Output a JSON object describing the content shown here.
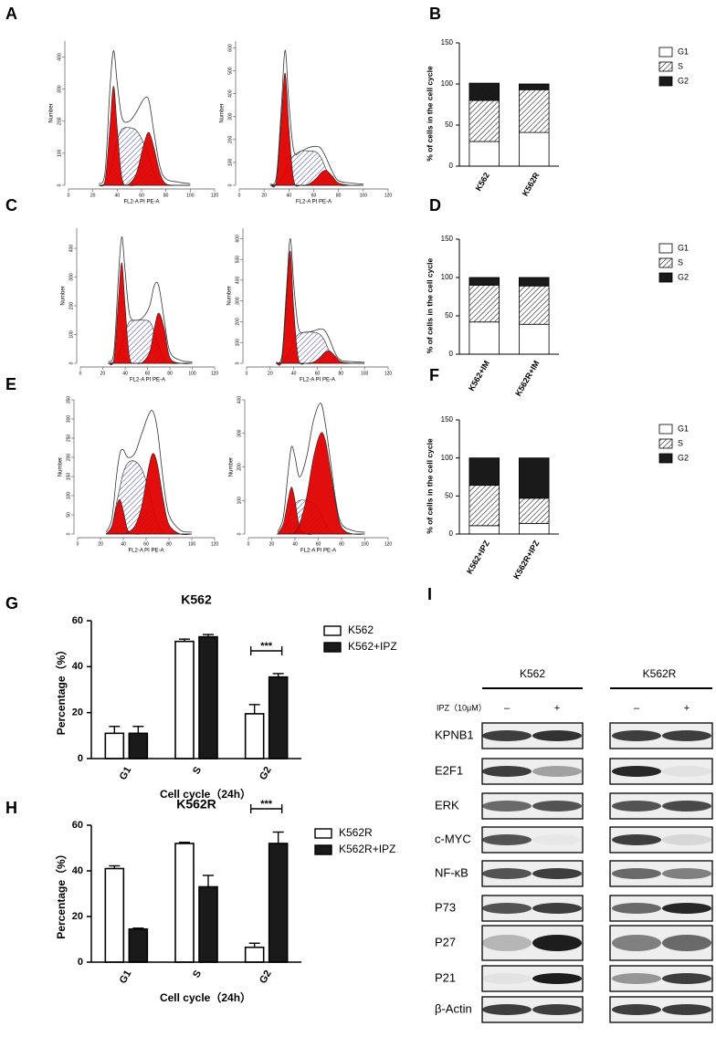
{
  "panel_labels": [
    "A",
    "B",
    "C",
    "D",
    "E",
    "F",
    "G",
    "H",
    "I"
  ],
  "chart_data": [
    {
      "type": "flow",
      "xlabel": "FL2-A PI PE-A",
      "ylabel": "Number",
      "xlim": [
        0,
        120
      ],
      "xticks": [
        0,
        20,
        40,
        60,
        80,
        100,
        120
      ],
      "ylim": [
        0,
        450
      ],
      "yticks": [
        0,
        100,
        200,
        300,
        400
      ],
      "x": [
        25,
        30,
        34,
        37,
        40,
        44,
        50,
        56,
        62,
        66,
        70,
        75,
        80,
        90,
        100
      ],
      "series": [
        {
          "kind": "area",
          "color": "#3a3a9c",
          "pattern": "hatch",
          "values": [
            0,
            5,
            40,
            90,
            140,
            175,
            180,
            170,
            130,
            90,
            40,
            10,
            0,
            0,
            0
          ]
        },
        {
          "kind": "area",
          "color": "#e00000",
          "values": [
            0,
            15,
            180,
            310,
            180,
            20,
            0,
            0,
            0,
            0,
            0,
            0,
            0,
            0,
            0
          ]
        },
        {
          "kind": "area",
          "color": "#e00000",
          "values": [
            0,
            0,
            0,
            0,
            0,
            0,
            5,
            40,
            130,
            165,
            120,
            40,
            5,
            0,
            0
          ]
        },
        {
          "kind": "line",
          "color": "#333333",
          "values": [
            5,
            40,
            300,
            420,
            320,
            210,
            200,
            230,
            270,
            265,
            170,
            60,
            20,
            10,
            5
          ]
        }
      ]
    },
    {
      "type": "flow",
      "xlabel": "FL2-A PI PE-A",
      "ylabel": "Number",
      "xlim": [
        0,
        120
      ],
      "xticks": [
        0,
        20,
        40,
        60,
        80,
        100,
        120
      ],
      "ylim": [
        0,
        630
      ],
      "yticks": [
        0,
        100,
        200,
        300,
        400,
        500,
        600
      ],
      "x": [
        25,
        30,
        34,
        37,
        40,
        44,
        50,
        56,
        62,
        66,
        70,
        75,
        80,
        90,
        100
      ],
      "series": [
        {
          "kind": "area",
          "color": "#3a3a9c",
          "pattern": "hatch",
          "values": [
            0,
            5,
            30,
            60,
            100,
            130,
            150,
            150,
            145,
            120,
            70,
            20,
            0,
            0,
            0
          ]
        },
        {
          "kind": "area",
          "color": "#e00000",
          "values": [
            0,
            20,
            300,
            490,
            250,
            20,
            0,
            0,
            0,
            0,
            0,
            0,
            0,
            0,
            0
          ]
        },
        {
          "kind": "area",
          "color": "#e00000",
          "values": [
            0,
            0,
            0,
            0,
            0,
            0,
            0,
            5,
            30,
            55,
            65,
            40,
            10,
            0,
            0
          ]
        },
        {
          "kind": "line",
          "color": "#333333",
          "values": [
            5,
            40,
            350,
            590,
            360,
            150,
            150,
            165,
            170,
            160,
            120,
            60,
            20,
            10,
            5
          ]
        }
      ]
    },
    {
      "type": "stacked",
      "ylabel": "% of cells in the cell cycle",
      "ylim": [
        0,
        150
      ],
      "yticks": [
        0,
        50,
        100,
        150
      ],
      "categories": [
        "K562",
        "K562R"
      ],
      "series": [
        {
          "name": "G1",
          "color": "#ffffff",
          "values": [
            30,
            41
          ]
        },
        {
          "name": "S",
          "color": "#ffffff",
          "pattern": "hatch",
          "values": [
            50,
            52
          ]
        },
        {
          "name": "G2",
          "color": "#1a1a1a",
          "values": [
            21,
            7
          ]
        }
      ]
    },
    {
      "type": "flow",
      "xlabel": "FL2-A PI PE-A",
      "ylabel": "Number",
      "xlim": [
        0,
        120
      ],
      "xticks": [
        0,
        20,
        40,
        60,
        80,
        100,
        120
      ],
      "ylim": [
        0,
        470
      ],
      "yticks": [
        0,
        100,
        200,
        300,
        400
      ],
      "x": [
        25,
        30,
        34,
        37,
        40,
        44,
        50,
        56,
        62,
        66,
        70,
        75,
        80,
        90,
        100
      ],
      "series": [
        {
          "kind": "area",
          "color": "#3a3a9c",
          "pattern": "hatch",
          "values": [
            0,
            5,
            30,
            70,
            110,
            145,
            150,
            150,
            145,
            110,
            60,
            15,
            0,
            0,
            0
          ]
        },
        {
          "kind": "area",
          "color": "#e00000",
          "values": [
            0,
            15,
            220,
            350,
            200,
            20,
            0,
            0,
            0,
            0,
            0,
            0,
            0,
            0,
            0
          ]
        },
        {
          "kind": "area",
          "color": "#e00000",
          "values": [
            0,
            0,
            0,
            0,
            0,
            0,
            0,
            5,
            40,
            120,
            175,
            120,
            20,
            0,
            0
          ]
        },
        {
          "kind": "line",
          "color": "#333333",
          "values": [
            5,
            40,
            300,
            440,
            320,
            170,
            150,
            160,
            200,
            270,
            270,
            150,
            40,
            10,
            5
          ]
        }
      ]
    },
    {
      "type": "flow",
      "xlabel": "FL2-A PI PE-A",
      "ylabel": "Number",
      "xlim": [
        0,
        120
      ],
      "xticks": [
        0,
        20,
        40,
        60,
        80,
        100,
        120
      ],
      "ylim": [
        0,
        650
      ],
      "yticks": [
        0,
        100,
        200,
        300,
        400,
        500,
        600
      ],
      "x": [
        25,
        30,
        34,
        37,
        40,
        44,
        50,
        56,
        62,
        66,
        70,
        75,
        80,
        90,
        100
      ],
      "series": [
        {
          "kind": "area",
          "color": "#3a3a9c",
          "pattern": "hatch",
          "values": [
            0,
            5,
            30,
            70,
            110,
            140,
            150,
            150,
            140,
            110,
            60,
            15,
            0,
            0,
            0
          ]
        },
        {
          "kind": "area",
          "color": "#e00000",
          "values": [
            0,
            20,
            330,
            540,
            260,
            20,
            0,
            0,
            0,
            0,
            0,
            0,
            0,
            0,
            0
          ]
        },
        {
          "kind": "area",
          "color": "#e00000",
          "values": [
            0,
            0,
            0,
            0,
            0,
            0,
            0,
            5,
            25,
            50,
            60,
            35,
            8,
            0,
            0
          ]
        },
        {
          "kind": "line",
          "color": "#333333",
          "values": [
            5,
            40,
            370,
            600,
            380,
            170,
            150,
            155,
            165,
            160,
            120,
            50,
            15,
            8,
            5
          ]
        }
      ]
    },
    {
      "type": "stacked",
      "ylabel": "% of cells in the cell cycle",
      "ylim": [
        0,
        150
      ],
      "yticks": [
        0,
        50,
        100,
        150
      ],
      "categories": [
        "K562+IM",
        "K562R+IM"
      ],
      "series": [
        {
          "name": "G1",
          "color": "#ffffff",
          "values": [
            42,
            39
          ]
        },
        {
          "name": "S",
          "color": "#ffffff",
          "pattern": "hatch",
          "values": [
            48,
            50
          ]
        },
        {
          "name": "G2",
          "color": "#1a1a1a",
          "values": [
            10,
            11
          ]
        }
      ]
    },
    {
      "type": "flow",
      "xlabel": "FL2-A PI PE-A",
      "ylabel": "Number",
      "xlim": [
        0,
        120
      ],
      "xticks": [
        0,
        20,
        40,
        60,
        80,
        100,
        120
      ],
      "ylim": [
        0,
        350
      ],
      "yticks": [
        0,
        50,
        100,
        150,
        200,
        250,
        300,
        350
      ],
      "x": [
        25,
        30,
        34,
        37,
        40,
        44,
        50,
        56,
        62,
        66,
        70,
        75,
        80,
        90,
        100
      ],
      "series": [
        {
          "kind": "area",
          "color": "#3a3a9c",
          "pattern": "hatch",
          "values": [
            0,
            20,
            80,
            120,
            160,
            185,
            190,
            170,
            120,
            70,
            30,
            5,
            0,
            0,
            0
          ]
        },
        {
          "kind": "area",
          "color": "#e00000",
          "values": [
            0,
            20,
            70,
            90,
            60,
            10,
            0,
            0,
            0,
            0,
            0,
            0,
            0,
            0,
            0
          ]
        },
        {
          "kind": "area",
          "color": "#e00000",
          "values": [
            0,
            0,
            0,
            0,
            0,
            5,
            20,
            70,
            170,
            210,
            180,
            90,
            25,
            0,
            0
          ]
        },
        {
          "kind": "line",
          "color": "#333333",
          "values": [
            5,
            40,
            150,
            210,
            220,
            200,
            210,
            260,
            310,
            320,
            270,
            140,
            50,
            10,
            5
          ]
        }
      ]
    },
    {
      "type": "flow",
      "xlabel": "FL2-A PI PE-A",
      "ylabel": "Number",
      "xlim": [
        0,
        120
      ],
      "xticks": [
        0,
        20,
        40,
        60,
        80,
        100,
        120
      ],
      "ylim": [
        0,
        400
      ],
      "yticks": [
        0,
        100,
        200,
        300,
        400
      ],
      "x": [
        25,
        30,
        34,
        37,
        40,
        44,
        50,
        56,
        62,
        66,
        70,
        75,
        80,
        90,
        100
      ],
      "series": [
        {
          "kind": "area",
          "color": "#3a3a9c",
          "pattern": "hatch",
          "values": [
            0,
            10,
            40,
            70,
            90,
            100,
            100,
            90,
            60,
            30,
            10,
            0,
            0,
            0,
            0
          ]
        },
        {
          "kind": "area",
          "color": "#e00000",
          "values": [
            0,
            30,
            100,
            140,
            100,
            20,
            0,
            0,
            0,
            0,
            0,
            0,
            0,
            0,
            0
          ]
        },
        {
          "kind": "area",
          "color": "#e00000",
          "values": [
            0,
            0,
            0,
            0,
            5,
            30,
            110,
            230,
            300,
            280,
            200,
            90,
            20,
            0,
            0
          ]
        },
        {
          "kind": "line",
          "color": "#333333",
          "values": [
            5,
            50,
            180,
            260,
            230,
            170,
            230,
            340,
            390,
            330,
            230,
            100,
            30,
            10,
            5
          ]
        }
      ]
    },
    {
      "type": "stacked",
      "ylabel": "% of cells in the cell cycle",
      "ylim": [
        0,
        150
      ],
      "yticks": [
        0,
        50,
        100,
        150
      ],
      "categories": [
        "K562+IPZ",
        "K562R+IPZ"
      ],
      "series": [
        {
          "name": "G1",
          "color": "#ffffff",
          "values": [
            11,
            14
          ]
        },
        {
          "name": "S",
          "color": "#ffffff",
          "pattern": "hatch",
          "values": [
            53,
            33
          ]
        },
        {
          "name": "G2",
          "color": "#1a1a1a",
          "values": [
            36,
            53
          ]
        }
      ]
    },
    {
      "type": "grouped",
      "title": "K562",
      "ylabel": "Percentage（%）",
      "xlabel": "Cell cycle（24h）",
      "ylim": [
        0,
        60
      ],
      "yticks": [
        0,
        20,
        40,
        60
      ],
      "categories": [
        "G1",
        "S",
        "G2"
      ],
      "annotation": "***",
      "series": [
        {
          "name": "K562",
          "color": "#ffffff",
          "values": [
            11,
            51,
            19.5
          ],
          "errors": [
            3,
            1,
            4
          ]
        },
        {
          "name": "K562+IPZ",
          "color": "#1a1a1a",
          "values": [
            11,
            53,
            35.5
          ],
          "errors": [
            3,
            1,
            1.5
          ]
        }
      ]
    },
    {
      "type": "grouped",
      "title": "K562R",
      "ylabel": "Percentage（%）",
      "xlabel": "Cell cycle（24h）",
      "ylim": [
        0,
        60
      ],
      "yticks": [
        0,
        20,
        40,
        60
      ],
      "categories": [
        "G1",
        "S",
        "G2"
      ],
      "annotation": "***",
      "series": [
        {
          "name": "K562R",
          "color": "#ffffff",
          "values": [
            41,
            52,
            6.5
          ],
          "errors": [
            1.2,
            0.5,
            1.8
          ]
        },
        {
          "name": "K562R+IPZ",
          "color": "#1a1a1a",
          "values": [
            14.5,
            33,
            52
          ],
          "errors": [
            0.4,
            5,
            5
          ]
        }
      ]
    }
  ],
  "blot": {
    "groups": [
      "K562",
      "K562R"
    ],
    "treatment": "IPZ（10μM）",
    "conditions": [
      "–",
      "+",
      "–",
      "+"
    ],
    "proteins": [
      "KPNB1",
      "E2F1",
      "ERK",
      "c-MYC",
      "NF-κB",
      "P73",
      "P27",
      "P21",
      "β-Actin"
    ]
  }
}
